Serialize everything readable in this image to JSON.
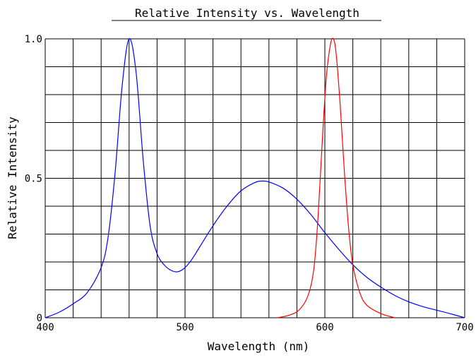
{
  "chart_data": {
    "type": "line",
    "title": "Relative Intensity vs. Wavelength",
    "xlabel": "Wavelength (nm)",
    "ylabel": "Relative Intensity",
    "xlim": [
      400,
      700
    ],
    "ylim": [
      0,
      1.0
    ],
    "grid": true,
    "x_ticks": [
      400,
      500,
      600,
      700
    ],
    "x_tick_labels": [
      "400",
      "500",
      "600",
      "700"
    ],
    "y_ticks": [
      0,
      0.5,
      1.0
    ],
    "y_tick_labels": [
      "0",
      "0.5",
      "1.0"
    ],
    "x_grid_step": 20,
    "y_grid_step": 0.1,
    "series": [
      {
        "color": "#0000ff",
        "points": [
          [
            400,
            0.0
          ],
          [
            410,
            0.02
          ],
          [
            420,
            0.05
          ],
          [
            430,
            0.09
          ],
          [
            440,
            0.18
          ],
          [
            445,
            0.29
          ],
          [
            450,
            0.52
          ],
          [
            455,
            0.83
          ],
          [
            460,
            1.0
          ],
          [
            465,
            0.88
          ],
          [
            470,
            0.57
          ],
          [
            475,
            0.33
          ],
          [
            480,
            0.23
          ],
          [
            485,
            0.19
          ],
          [
            490,
            0.17
          ],
          [
            495,
            0.165
          ],
          [
            500,
            0.18
          ],
          [
            505,
            0.21
          ],
          [
            510,
            0.25
          ],
          [
            520,
            0.33
          ],
          [
            530,
            0.4
          ],
          [
            540,
            0.455
          ],
          [
            550,
            0.485
          ],
          [
            555,
            0.49
          ],
          [
            560,
            0.487
          ],
          [
            570,
            0.465
          ],
          [
            580,
            0.425
          ],
          [
            590,
            0.37
          ],
          [
            600,
            0.305
          ],
          [
            610,
            0.245
          ],
          [
            620,
            0.19
          ],
          [
            630,
            0.145
          ],
          [
            640,
            0.11
          ],
          [
            650,
            0.08
          ],
          [
            660,
            0.057
          ],
          [
            670,
            0.04
          ],
          [
            680,
            0.027
          ],
          [
            690,
            0.014
          ],
          [
            700,
            0.0
          ]
        ]
      },
      {
        "color": "#ff0000",
        "points": [
          [
            566,
            0.0
          ],
          [
            575,
            0.01
          ],
          [
            582,
            0.03
          ],
          [
            588,
            0.08
          ],
          [
            592,
            0.17
          ],
          [
            595,
            0.35
          ],
          [
            598,
            0.62
          ],
          [
            601,
            0.86
          ],
          [
            604,
            0.98
          ],
          [
            606,
            1.0
          ],
          [
            608,
            0.95
          ],
          [
            611,
            0.76
          ],
          [
            614,
            0.52
          ],
          [
            617,
            0.32
          ],
          [
            620,
            0.19
          ],
          [
            625,
            0.09
          ],
          [
            630,
            0.045
          ],
          [
            640,
            0.015
          ],
          [
            650,
            0.0
          ]
        ]
      }
    ]
  }
}
